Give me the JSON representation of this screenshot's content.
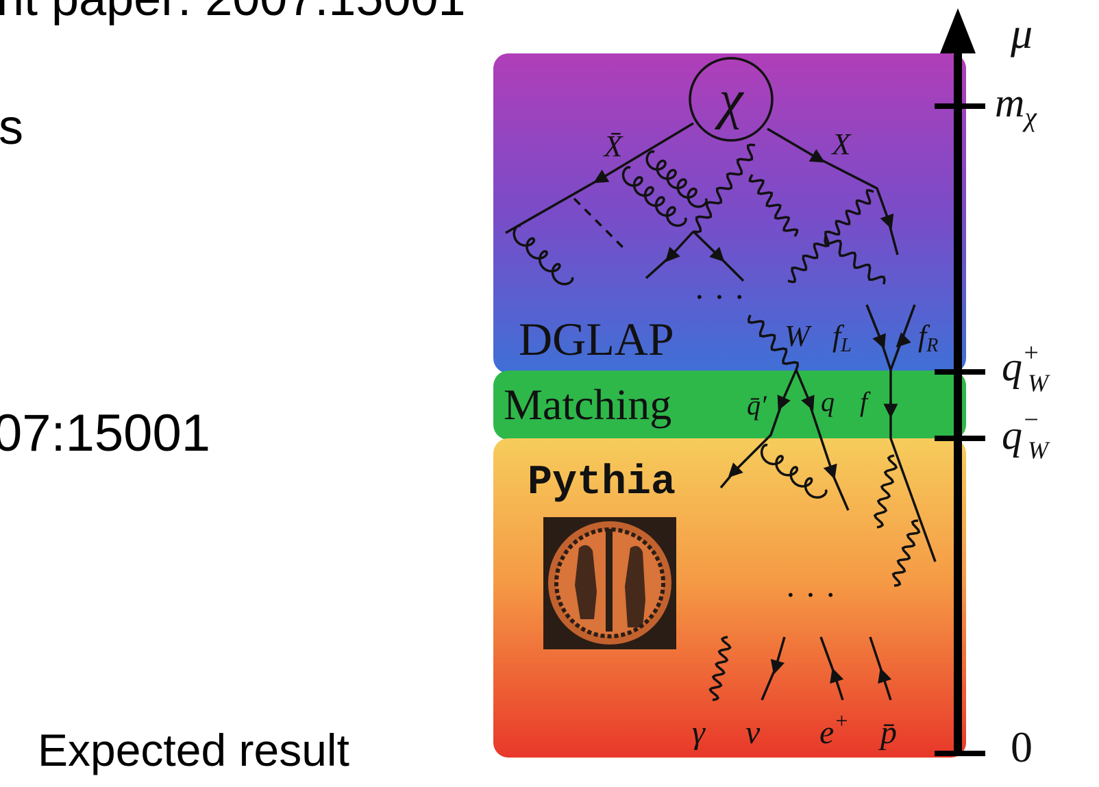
{
  "slide": {
    "top_text": "nt paper: 2007.15001",
    "side_text": "s",
    "ref_text": "07:15001",
    "caption": "Expected result"
  },
  "diagram": {
    "regions": {
      "dglap": "DGLAP",
      "matching": "Matching",
      "pythia": "Pythia"
    },
    "particles": {
      "chi": "χ",
      "xbar": "X̄",
      "x": "X",
      "w": "W",
      "fl": {
        "base": "f",
        "sub": "L"
      },
      "fr": {
        "base": "f",
        "sub": "R"
      },
      "qbarprime": "q̄′",
      "q": "q",
      "f": "f",
      "gamma": "γ",
      "nu": "ν",
      "eplus": {
        "base": "e",
        "sup": "+"
      },
      "pbar": "p̄"
    },
    "ellipses": [
      "· · ·",
      "· · ·"
    ],
    "axis": {
      "label": "μ",
      "ticks": [
        {
          "base": "m",
          "sub": "χ"
        },
        {
          "base": "q",
          "sup": "+",
          "sub": "W"
        },
        {
          "base": "q",
          "sup": "−",
          "sub": "W"
        },
        {
          "base": "0"
        }
      ]
    }
  }
}
